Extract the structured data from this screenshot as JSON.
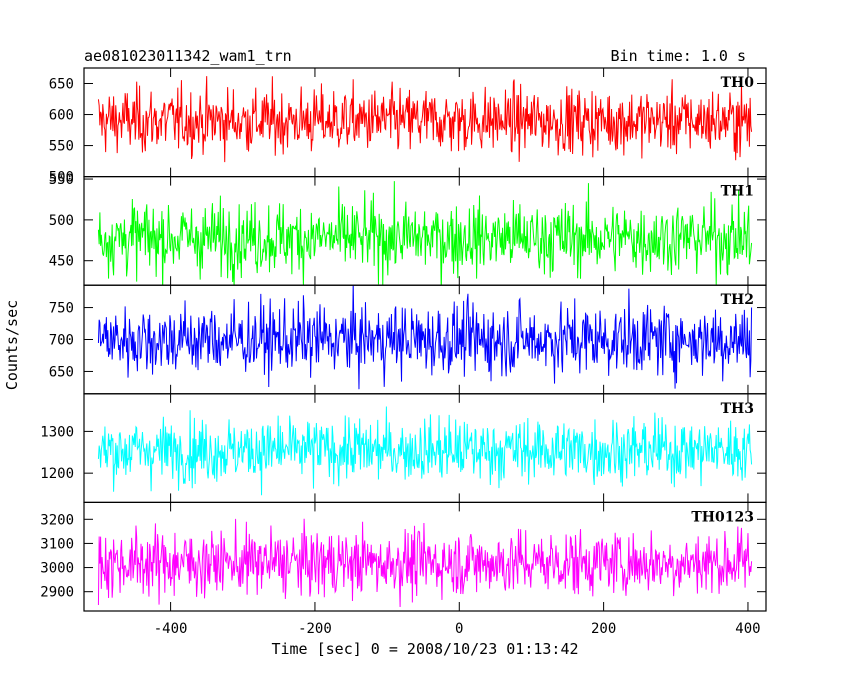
{
  "chart_data": {
    "type": "line",
    "title": "ae081023011342_wam1_trn",
    "subtitle": "Bin time: 1.0 s",
    "xlabel": "Time [sec] 0 = 2008/10/23 01:13:42",
    "ylabel": "Counts/sec",
    "xlim": [
      -520,
      425
    ],
    "x_range": [
      -500,
      405
    ],
    "x_step": 1,
    "x_ticks": [
      -400,
      -200,
      0,
      200,
      400
    ],
    "grid": false,
    "legend": "none",
    "panels": [
      {
        "name": "TH0",
        "color": "#ff0000",
        "ylim": [
          500,
          675
        ],
        "yticks": [
          500,
          550,
          600,
          650
        ],
        "mean": 590,
        "noise": 26
      },
      {
        "name": "TH1",
        "color": "#00ff00",
        "ylim": [
          420,
          553
        ],
        "yticks": [
          450,
          500,
          550
        ],
        "mean": 478,
        "noise": 22
      },
      {
        "name": "TH2",
        "color": "#0000ff",
        "ylim": [
          615,
          785
        ],
        "yticks": [
          650,
          700,
          750
        ],
        "mean": 700,
        "noise": 28
      },
      {
        "name": "TH3",
        "color": "#00ffff",
        "ylim": [
          1130,
          1390
        ],
        "yticks": [
          1200,
          1300
        ],
        "mean": 1255,
        "noise": 38
      },
      {
        "name": "TH0123",
        "color": "#ff00ff",
        "ylim": [
          2820,
          3270
        ],
        "yticks": [
          2900,
          3000,
          3100,
          3200
        ],
        "mean": 3020,
        "noise": 68
      }
    ]
  }
}
